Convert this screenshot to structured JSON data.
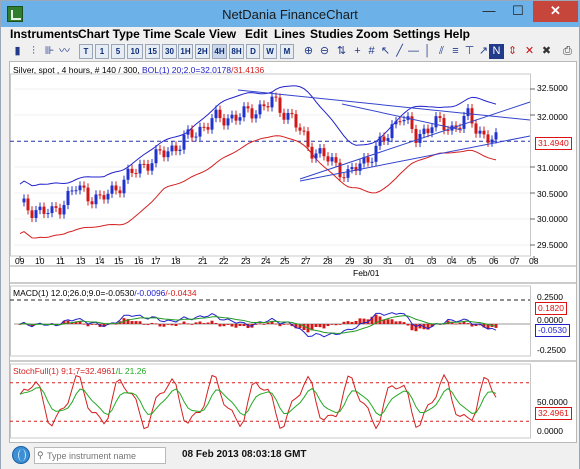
{
  "window": {
    "title": "NetDania FinanceChart",
    "min_glyph": "—",
    "max_glyph": "☐",
    "close_glyph": "✕"
  },
  "menu": [
    "Instruments",
    "Chart Type",
    "Time Scale",
    "View",
    "Edit",
    "Lines",
    "Studies",
    "Zoom",
    "Settings",
    "Help"
  ],
  "toolbar": {
    "timeframes": [
      "T",
      "1",
      "5",
      "10",
      "15",
      "30",
      "1H",
      "2H",
      "4H",
      "8H",
      "D",
      "W",
      "M"
    ],
    "selected_timeframe": "4H"
  },
  "main_panel": {
    "header_parts": [
      "Silver, spot , 4 hours, # 140 / 300, ",
      "BOL(1) 20;2.0=32.0178",
      "/31.4136"
    ],
    "y_ticks": [
      "32.5000",
      "32.0000",
      "31.5000",
      "31.0000",
      "30.5000",
      "30.0000",
      "29.5000"
    ],
    "current_price": "31.4940",
    "x_ticks": [
      "09",
      "10",
      "11",
      "13",
      "14",
      "15",
      "16",
      "17",
      "18",
      "21",
      "22",
      "23",
      "24",
      "25",
      "27",
      "28",
      "29",
      "30",
      "31",
      "01",
      "03",
      "04",
      "05",
      "06",
      "07",
      "08",
      "11",
      "12"
    ],
    "month_label": "Feb/01"
  },
  "macd_panel": {
    "header_parts": [
      "MACD(1) 12.0;26.0;9.0=-0.0530",
      "/-0.0096",
      "/-0.0434"
    ],
    "y_ticks": [
      "0.2500",
      "0.0000",
      "-0.2500"
    ],
    "upper_box": "0.1820",
    "value_box": "-0.0530"
  },
  "stoch_panel": {
    "header_parts": [
      "StochFull(1) 9;1;7=32.4961",
      "/L 21.26"
    ],
    "y_ticks": [
      "50.0000",
      "0.0000"
    ],
    "value_box": "32.4961"
  },
  "bottom": {
    "placeholder": "Type instrument name",
    "timestamp": "08 Feb 2013 08:03:18 GMT"
  },
  "colors": {
    "up": "#2233cc",
    "down": "#d01818",
    "band_upper": "#2222cc",
    "band_lower": "#d42020",
    "macd_line": "#2222cc",
    "signal": "#229922",
    "stoch_k": "#d42020",
    "stoch_d": "#22aa22",
    "trendline": "#3344cc"
  }
}
